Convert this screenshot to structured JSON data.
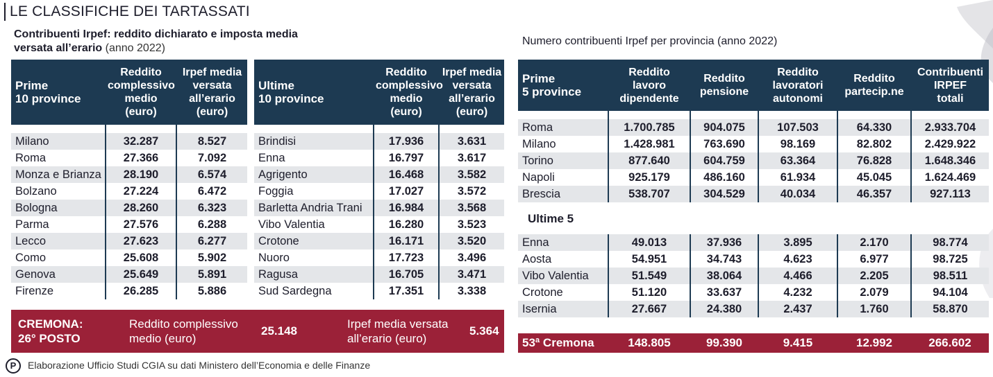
{
  "title": "LE CLASSIFICHE DEI TARTASSATI",
  "left_subtitle": {
    "bold": "Contribuenti Irpef: reddito dichiarato e imposta media",
    "bold2": "versata all’erario",
    "light": "(anno 2022)"
  },
  "right_subtitle": "Numero contribuenti Irpef per provincia (anno 2022)",
  "top10": {
    "headers": [
      "Prime\n10 province",
      "Reddito\ncomplessivo\nmedio\n(euro)",
      "Irpef media\nversata\nall’erario\n(euro)"
    ],
    "rows": [
      [
        "Milano",
        "32.287",
        "8.527"
      ],
      [
        "Roma",
        "27.366",
        "7.092"
      ],
      [
        "Monza e Brianza",
        "28.190",
        "6.574"
      ],
      [
        "Bolzano",
        "27.224",
        "6.472"
      ],
      [
        "Bologna",
        "28.260",
        "6.323"
      ],
      [
        "Parma",
        "27.576",
        "6.288"
      ],
      [
        "Lecco",
        "27.623",
        "6.277"
      ],
      [
        "Como",
        "25.608",
        "5.902"
      ],
      [
        "Genova",
        "25.649",
        "5.891"
      ],
      [
        "Firenze",
        "26.285",
        "5.886"
      ]
    ]
  },
  "bottom10": {
    "headers": [
      "Ultime\n10 province",
      "Reddito\ncomplessivo\nmedio\n(euro)",
      "Irpef media\nversata\nall’erario\n(euro)"
    ],
    "rows": [
      [
        "Brindisi",
        "17.936",
        "3.631"
      ],
      [
        "Enna",
        "16.797",
        "3.617"
      ],
      [
        "Agrigento",
        "16.468",
        "3.582"
      ],
      [
        "Foggia",
        "17.027",
        "3.572"
      ],
      [
        "Barletta Andria Trani",
        "16.984",
        "3.568"
      ],
      [
        "Vibo Valentia",
        "16.280",
        "3.523"
      ],
      [
        "Crotone",
        "16.171",
        "3.520"
      ],
      [
        "Nuoro",
        "17.723",
        "3.496"
      ],
      [
        "Ragusa",
        "16.705",
        "3.471"
      ],
      [
        "Sud Sardegna",
        "17.351",
        "3.338"
      ]
    ]
  },
  "cremona_band": {
    "label": "CREMONA:\n26° POSTO",
    "income_label": "Reddito complessivo\nmedio (euro)",
    "income_value": "25.148",
    "irpef_label": "Irpef media versata\nall’erario (euro)",
    "irpef_value": "5.364"
  },
  "provinces": {
    "headers": [
      "Prime\n5 province",
      "Reddito\nlavoro\ndipendente",
      "Reddito\npensione",
      "Reddito\nlavoratori\nautonomi",
      "Reddito\npartecip.ne",
      "Contribuenti\nIRPEF\ntotali"
    ],
    "top5": [
      [
        "Roma",
        "1.700.785",
        "904.075",
        "107.503",
        "64.330",
        "2.933.704"
      ],
      [
        "Milano",
        "1.428.981",
        "763.690",
        "98.169",
        "82.802",
        "2.429.922"
      ],
      [
        "Torino",
        "877.640",
        "604.759",
        "63.364",
        "76.828",
        "1.648.346"
      ],
      [
        "Napoli",
        "925.179",
        "486.160",
        "61.934",
        "45.045",
        "1.624.469"
      ],
      [
        "Brescia",
        "538.707",
        "304.529",
        "40.034",
        "46.357",
        "927.113"
      ]
    ],
    "last5_label": "Ultime 5",
    "last5": [
      [
        "Enna",
        "49.013",
        "37.936",
        "3.895",
        "2.170",
        "98.774"
      ],
      [
        "Aosta",
        "54.951",
        "34.743",
        "4.623",
        "6.977",
        "98.725"
      ],
      [
        "Vibo Valentia",
        "51.549",
        "38.064",
        "4.466",
        "2.205",
        "98.511"
      ],
      [
        "Crotone",
        "51.120",
        "33.637",
        "4.232",
        "2.079",
        "94.104"
      ],
      [
        "Isernia",
        "27.667",
        "24.380",
        "2.437",
        "1.760",
        "58.870"
      ]
    ],
    "cremona": [
      "53ª Cremona",
      "148.805",
      "99.390",
      "9.415",
      "12.992",
      "266.602"
    ]
  },
  "footer": {
    "logo": "P",
    "text": "Elaborazione  Ufficio Studi CGIA su dati Ministero dell’Economia e delle Finanze"
  },
  "colors": {
    "header": "#1d3a52",
    "highlight": "#9b2138",
    "stripe": "#e4e6e9"
  }
}
